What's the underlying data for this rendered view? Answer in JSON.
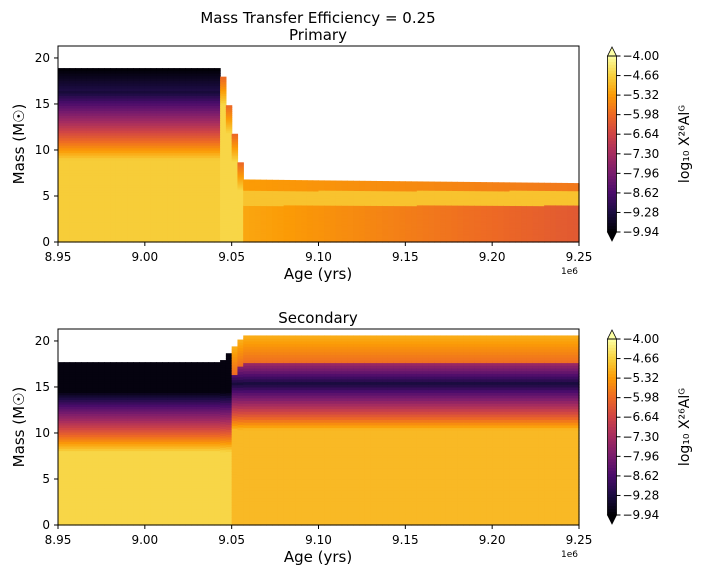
{
  "figure": {
    "suptitle": "Mass Transfer Efficiency = 0.25"
  },
  "colormap": {
    "name": "inferno",
    "stops": [
      "#000004",
      "#1b0c41",
      "#4a0c6b",
      "#781c6d",
      "#a52c60",
      "#cf4446",
      "#ed6925",
      "#fb9b06",
      "#f7d13d",
      "#fcffa4"
    ]
  },
  "chart_data": [
    {
      "type": "heatmap",
      "title": "Primary",
      "xlabel": "Age (yrs)",
      "ylabel": "Mass (M☉)",
      "x_offset_label": "1e6",
      "xlim": [
        8.95,
        9.25
      ],
      "ylim": [
        0,
        21.3
      ],
      "xticks": [
        "8.95",
        "9.00",
        "9.05",
        "9.10",
        "9.15",
        "9.20",
        "9.25"
      ],
      "yticks": [
        "0",
        "5",
        "10",
        "15",
        "20"
      ],
      "surface_mass_profile": {
        "age_x1e6": [
          8.95,
          9.044,
          9.057,
          9.1,
          9.15,
          9.2,
          9.25
        ],
        "mass": [
          18.9,
          18.9,
          6.8,
          6.7,
          6.6,
          6.5,
          6.4
        ]
      },
      "value_range_log10": [
        -9.94,
        -4.0
      ],
      "description_profile": {
        "mass": [
          0,
          6,
          10,
          13,
          15,
          17,
          18.9
        ],
        "log10_X": [
          -4.5,
          -4.6,
          -5.2,
          -5.9,
          -7.2,
          -8.8,
          -9.94
        ]
      },
      "colorbar": {
        "label": "log₁₀ X²⁶Alᴳ",
        "ticks": [
          "-4.00",
          "-4.66",
          "-5.32",
          "-5.98",
          "-6.64",
          "-7.30",
          "-7.96",
          "-8.62",
          "-9.28",
          "-9.94"
        ],
        "extend": "both"
      }
    },
    {
      "type": "heatmap",
      "title": "Secondary",
      "xlabel": "Age (yrs)",
      "ylabel": "Mass (M☉)",
      "x_offset_label": "1e6",
      "xlim": [
        8.95,
        9.25
      ],
      "ylim": [
        0,
        21.3
      ],
      "xticks": [
        "8.95",
        "9.00",
        "9.05",
        "9.10",
        "9.15",
        "9.20",
        "9.25"
      ],
      "yticks": [
        "0",
        "5",
        "10",
        "15",
        "20"
      ],
      "surface_mass_profile": {
        "age_x1e6": [
          8.95,
          9.044,
          9.057,
          9.1,
          9.15,
          9.2,
          9.25
        ],
        "mass": [
          17.7,
          17.7,
          20.6,
          20.6,
          20.6,
          20.6,
          20.6
        ]
      },
      "value_range_log10": [
        -9.94,
        -4.0
      ],
      "colorbar": {
        "label": "log₁₀ X²⁶Alᴳ",
        "ticks": [
          "-4.00",
          "-4.66",
          "-5.32",
          "-5.98",
          "-6.64",
          "-7.30",
          "-7.96",
          "-8.62",
          "-9.28",
          "-9.94"
        ],
        "extend": "both"
      }
    }
  ]
}
